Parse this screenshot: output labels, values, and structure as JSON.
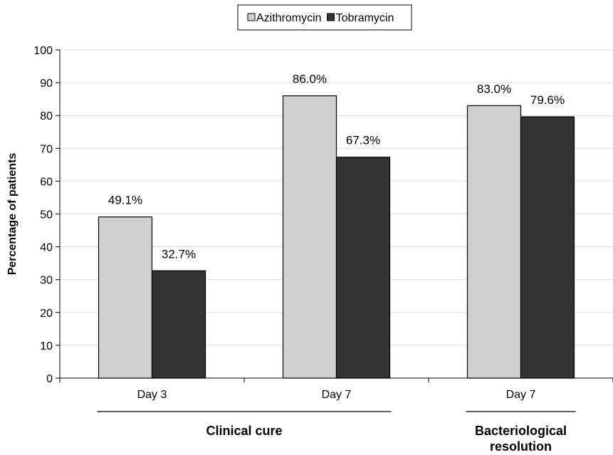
{
  "chart_data": {
    "type": "bar",
    "ylabel": "Percentage of patients",
    "ylim": [
      0,
      100
    ],
    "yticks": [
      0,
      10,
      20,
      30,
      40,
      50,
      60,
      70,
      80,
      90,
      100
    ],
    "grid": true,
    "legend_position": "top-center",
    "categories": [
      "Day 3",
      "Day 7",
      "Day 7"
    ],
    "category_groups": [
      {
        "label": "Clinical cure",
        "categories": [
          0,
          1
        ]
      },
      {
        "label": "Bacteriological\nresolution",
        "categories": [
          2
        ]
      }
    ],
    "series": [
      {
        "name": "Azithromycin",
        "color": "#d0d0d0",
        "values": [
          49.1,
          86.0,
          83.0
        ],
        "labels": [
          "49.1%",
          "86.0%",
          "83.0%"
        ]
      },
      {
        "name": "Tobramycin",
        "color": "#333333",
        "values": [
          32.7,
          67.3,
          79.6
        ],
        "labels": [
          "32.7%",
          "67.3%",
          "79.6%"
        ]
      }
    ]
  }
}
